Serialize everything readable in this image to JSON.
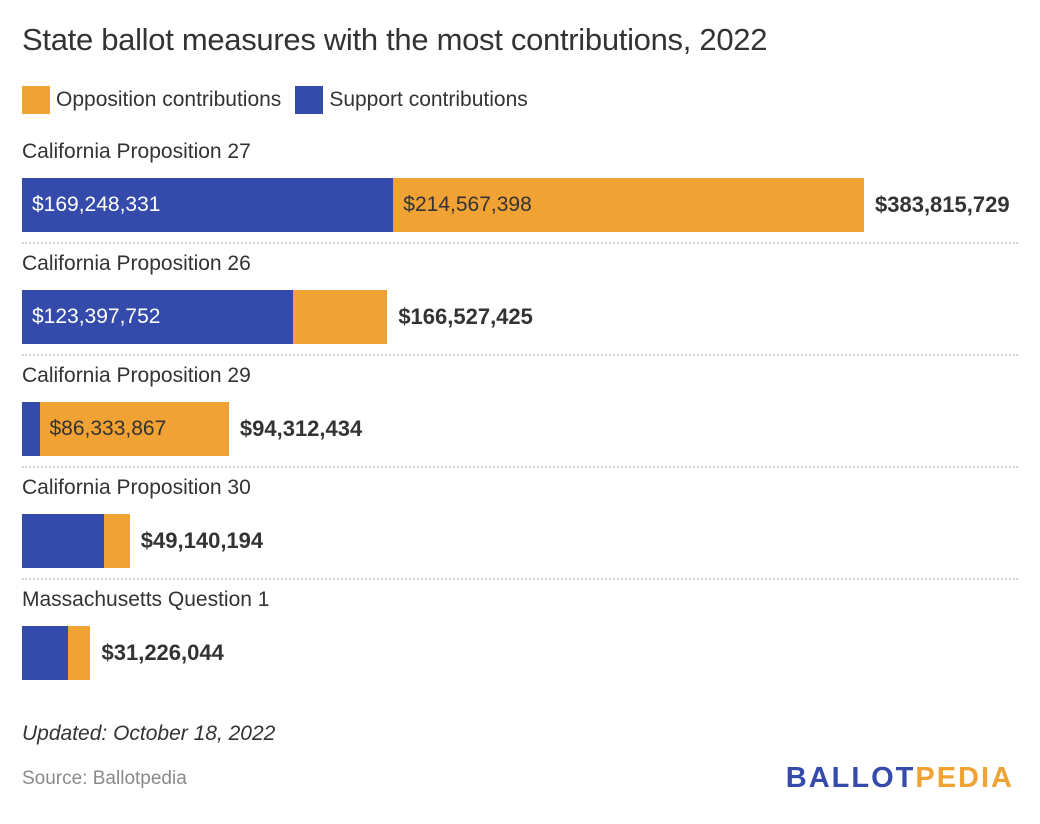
{
  "chart_data": {
    "type": "bar",
    "orientation": "horizontal",
    "stacked": true,
    "title": "State ballot measures with the most contributions, 2022",
    "xlabel": "",
    "ylabel": "",
    "grid": false,
    "legend_position": "top-left",
    "legend": [
      {
        "name": "Opposition contributions",
        "color": "#F0A234"
      },
      {
        "name": "Support contributions",
        "color": "#344BAB"
      }
    ],
    "categories": [
      "California Proposition 27",
      "California Proposition 26",
      "California Proposition 29",
      "California Proposition 30",
      "Massachusetts Question 1"
    ],
    "series": [
      {
        "name": "Support contributions",
        "color": "#344BAB",
        "values": [
          169248331,
          123397752,
          7978567,
          37400000,
          21000000
        ],
        "labels": [
          "$169,248,331",
          "$123,397,752",
          "",
          "",
          ""
        ]
      },
      {
        "name": "Opposition contributions",
        "color": "#F0A234",
        "values": [
          214567398,
          43129673,
          86333867,
          11740194,
          10226044
        ],
        "labels": [
          "$214,567,398",
          "",
          "$86,333,867",
          "",
          ""
        ]
      }
    ],
    "totals": [
      383815729,
      166527425,
      94312434,
      49140194,
      31226044
    ],
    "total_labels": [
      "$383,815,729",
      "$166,527,425",
      "$94,312,434",
      "$49,140,194",
      "$31,226,044"
    ],
    "xlim": [
      0,
      383815729
    ]
  },
  "footer": {
    "updated": "Updated: October 18, 2022",
    "source": "Source: Ballotpedia",
    "logo_part1": "BALLOT",
    "logo_part2": "PEDIA",
    "logo_color1": "#344BAB",
    "logo_color2": "#F0A234"
  }
}
